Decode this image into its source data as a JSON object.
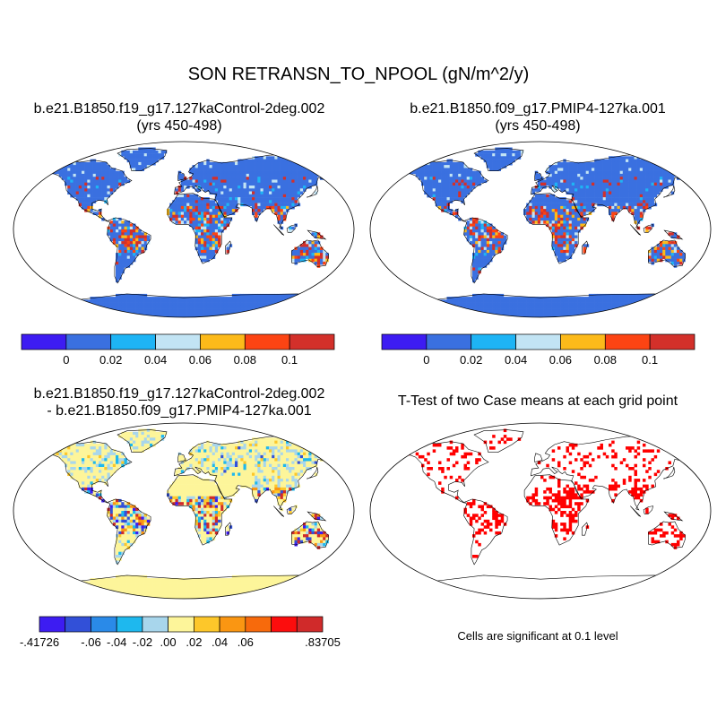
{
  "title": "SON RETRANSN_TO_NPOOL (gN/m^2/y)",
  "panels": [
    {
      "id": "control",
      "title_lines": [
        "b.e21.B1850.f19_g17.127kaControl-2deg.002",
        "(yrs 450-498)"
      ]
    },
    {
      "id": "pmip4",
      "title_lines": [
        "b.e21.B1850.f09_g17.PMIP4-127ka.001",
        "(yrs 450-498)"
      ]
    },
    {
      "id": "difference",
      "title_lines": [
        "b.e21.B1850.f19_g17.127kaControl-2deg.002",
        "- b.e21.B1850.f09_g17.PMIP4-127ka.001"
      ]
    },
    {
      "id": "ttest",
      "title_lines": [
        "T-Test of two Case means at each grid point"
      ]
    }
  ],
  "colorbar_top": {
    "colors": [
      "#3d1cf2",
      "#3a70e0",
      "#1eb4f5",
      "#c2e4f4",
      "#fcba1a",
      "#fc4413",
      "#d3302a"
    ],
    "labels": [
      "0",
      "0.02",
      "0.04",
      "0.06",
      "0.08",
      "0.1"
    ]
  },
  "colorbar_diff": {
    "colors": [
      "#3d1cf2",
      "#3250d8",
      "#2a8ae8",
      "#1eb8ee",
      "#a8d6ec",
      "#fdf59a",
      "#fdc72a",
      "#fa9612",
      "#f76a0c",
      "#fc0d0d",
      "#d02a2a"
    ],
    "labels": [
      "-.41726",
      "-.06",
      "-.04",
      "-.02",
      ".00",
      ".02",
      ".04",
      ".06",
      ".83705"
    ]
  },
  "significance_note": "Cells are significant at 0.1 level",
  "colors": {
    "ocean": "#ffffff",
    "coast": "#000000",
    "significant": "#ff0000"
  }
}
